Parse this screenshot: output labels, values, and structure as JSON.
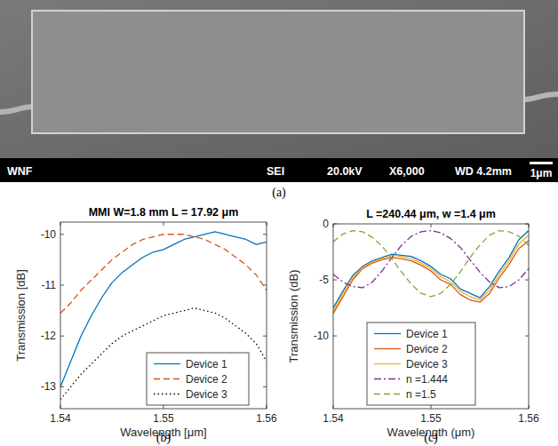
{
  "sem_image": {
    "info_bar": [
      "WNF",
      "SEI",
      "20.0kV",
      "X6,000",
      "WD 4.2mm"
    ],
    "scale_bar": "1μm",
    "caption": "(a)"
  },
  "chart_data": [
    {
      "type": "line",
      "title": "MMI W=1.8 mm L = 17.92 μm",
      "caption": "(b)",
      "x_label": "Wavelength [μm]",
      "y_label": "Transmission [dB]",
      "x": [
        1.54,
        1.541,
        1.542,
        1.543,
        1.544,
        1.545,
        1.546,
        1.547,
        1.548,
        1.549,
        1.55,
        1.551,
        1.552,
        1.553,
        1.554,
        1.555,
        1.556,
        1.557,
        1.558,
        1.559,
        1.56
      ],
      "xlim": [
        1.54,
        1.56
      ],
      "xticks": [
        1.54,
        1.55,
        1.56
      ],
      "ylim": [
        -13.43,
        -9.76
      ],
      "yticks": [
        -13,
        -12,
        -11,
        -10
      ],
      "grid": false,
      "legend": "lower right",
      "series": [
        {
          "name": "Device 1",
          "color": "#0072bd",
          "line_style": "solid",
          "values": [
            -13.0,
            -12.5,
            -12.0,
            -11.6,
            -11.25,
            -10.95,
            -10.75,
            -10.6,
            -10.45,
            -10.35,
            -10.3,
            -10.2,
            -10.1,
            -10.05,
            -10.0,
            -9.95,
            -10.0,
            -10.05,
            -10.1,
            -10.2,
            -10.15
          ]
        },
        {
          "name": "Device 2",
          "color": "#d95319",
          "line_style": "dashed",
          "values": [
            -11.55,
            -11.35,
            -11.1,
            -10.9,
            -10.7,
            -10.5,
            -10.35,
            -10.2,
            -10.1,
            -10.05,
            -10.0,
            -10.0,
            -10.0,
            -10.05,
            -10.1,
            -10.2,
            -10.3,
            -10.45,
            -10.6,
            -10.8,
            -11.1
          ]
        },
        {
          "name": "Device 3",
          "color": "#000000",
          "line_style": "dotted",
          "values": [
            -13.25,
            -13.0,
            -12.75,
            -12.55,
            -12.35,
            -12.15,
            -12.0,
            -11.9,
            -11.8,
            -11.7,
            -11.6,
            -11.55,
            -11.5,
            -11.45,
            -11.5,
            -11.55,
            -11.65,
            -11.8,
            -11.95,
            -12.15,
            -12.5
          ]
        }
      ]
    },
    {
      "type": "line",
      "title": "L =240.44 μm, w =1.4 μm",
      "caption": "(c)",
      "x_label": "Wavelength (μm)",
      "y_label": "Transmission (dB)",
      "x": [
        1.54,
        1.541,
        1.542,
        1.543,
        1.544,
        1.545,
        1.546,
        1.547,
        1.548,
        1.549,
        1.55,
        1.551,
        1.552,
        1.553,
        1.554,
        1.555,
        1.556,
        1.557,
        1.558,
        1.559,
        1.56
      ],
      "xlim": [
        1.54,
        1.56
      ],
      "xticks": [
        1.54,
        1.55,
        1.56
      ],
      "ylim": [
        -16.5,
        0
      ],
      "yticks": [
        -10,
        -5,
        0
      ],
      "grid": false,
      "legend": "lower right",
      "series": [
        {
          "name": "Device 1",
          "color": "#0072bd",
          "line_style": "solid",
          "values": [
            -7.5,
            -6.0,
            -4.6,
            -3.8,
            -3.3,
            -3.0,
            -2.7,
            -2.8,
            -2.9,
            -3.3,
            -3.8,
            -4.5,
            -4.9,
            -5.8,
            -6.2,
            -6.6,
            -5.6,
            -4.2,
            -3.0,
            -1.4,
            -0.6
          ]
        },
        {
          "name": "Device 2",
          "color": "#d95319",
          "line_style": "solid",
          "values": [
            -8.0,
            -6.5,
            -5.0,
            -4.0,
            -3.5,
            -3.2,
            -3.0,
            -3.1,
            -3.3,
            -3.7,
            -4.2,
            -5.0,
            -5.4,
            -6.3,
            -6.8,
            -7.0,
            -6.2,
            -4.8,
            -3.6,
            -2.2,
            -1.5
          ]
        },
        {
          "name": "Device 3",
          "color": "#edb120",
          "line_style": "solid",
          "values": [
            -7.8,
            -6.2,
            -4.8,
            -3.9,
            -3.4,
            -3.1,
            -2.8,
            -2.9,
            -3.1,
            -3.5,
            -4.0,
            -4.7,
            -5.2,
            -6.0,
            -6.5,
            -6.8,
            -5.9,
            -4.5,
            -3.3,
            -1.8,
            -1.0
          ]
        },
        {
          "name": "n =1.444",
          "color": "#7e2f8e",
          "line_style": "dashdot",
          "values": [
            -4.5,
            -5.2,
            -5.6,
            -5.7,
            -5.2,
            -4.2,
            -3.0,
            -1.9,
            -1.1,
            -0.7,
            -0.6,
            -0.8,
            -1.3,
            -2.1,
            -3.2,
            -4.3,
            -5.2,
            -5.7,
            -5.6,
            -5.0,
            -4.0
          ]
        },
        {
          "name": "n =1.5",
          "color": "#77ac30",
          "line_style": "dashed",
          "values": [
            -1.6,
            -0.9,
            -0.6,
            -0.7,
            -1.2,
            -2.0,
            -3.1,
            -4.3,
            -5.4,
            -6.2,
            -6.5,
            -6.2,
            -5.4,
            -4.3,
            -3.0,
            -1.9,
            -1.0,
            -0.6,
            -0.7,
            -1.1,
            -1.9
          ]
        }
      ]
    }
  ]
}
